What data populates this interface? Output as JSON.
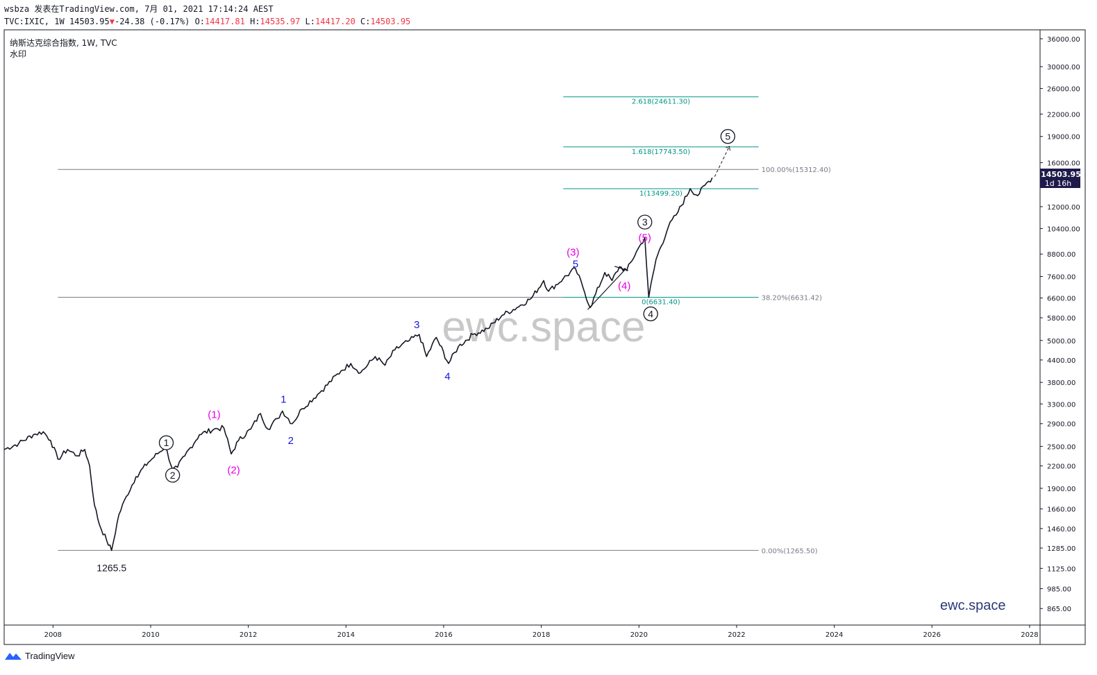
{
  "header": {
    "user": "wsbza",
    "published_on": "发表在TradingView.com,",
    "datetime": "7月 01, 2021 17:14:24 AEST",
    "symbol": "TVC:IXIC, 1W",
    "last": "14503.95",
    "change": "-24.38 (-0.17%)",
    "open_label": "O:",
    "open": "14417.81",
    "high_label": "H:",
    "high": "14535.97",
    "low_label": "L:",
    "low": "14417.20",
    "close_label": "C:",
    "close": "14503.95"
  },
  "legend": {
    "title": "纳斯达克综合指数, 1W, TVC",
    "watermark_label": "水印"
  },
  "watermark": "ewc.space",
  "brand_bottom": "ewc.space",
  "footer": {
    "brand": "TradingView"
  },
  "price_badge": {
    "price": "14503.95",
    "countdown": "1d 16h"
  },
  "colors": {
    "candles": "#131722",
    "fib_teal": "#009688",
    "fib_gray": "#787b86",
    "wave_magenta": "#e600e6",
    "wave_blue": "#1515e0",
    "badge_bg": "#1e1a4a"
  },
  "chart_data": {
    "type": "line",
    "scale": "log",
    "ylim": [
      780,
      38000
    ],
    "xlim": [
      2007.0,
      2028.2
    ],
    "x_ticks": [
      "2008",
      "2010",
      "2012",
      "2014",
      "2016",
      "2018",
      "2020",
      "2022",
      "2024",
      "2026",
      "2028"
    ],
    "y_ticks": [
      "36000.00",
      "30000.00",
      "26000.00",
      "22000.00",
      "19000.00",
      "16000.00",
      "12000.00",
      "10400.00",
      "8800.00",
      "7600.00",
      "6600.00",
      "5800.00",
      "5000.00",
      "4400.00",
      "3800.00",
      "3300.00",
      "2900.00",
      "2500.00",
      "2200.00",
      "1900.00",
      "1660.00",
      "1460.00",
      "1285.00",
      "1125.00",
      "985.00",
      "865.00"
    ],
    "series": [
      {
        "values": [
          [
            2007.0,
            2450
          ],
          [
            2007.3,
            2550
          ],
          [
            2007.6,
            2700
          ],
          [
            2007.8,
            2750
          ],
          [
            2007.95,
            2600
          ],
          [
            2008.1,
            2300
          ],
          [
            2008.3,
            2450
          ],
          [
            2008.5,
            2350
          ],
          [
            2008.65,
            2450
          ],
          [
            2008.75,
            2200
          ],
          [
            2008.85,
            1700
          ],
          [
            2008.95,
            1500
          ],
          [
            2009.1,
            1350
          ],
          [
            2009.2,
            1265.5
          ],
          [
            2009.35,
            1600
          ],
          [
            2009.5,
            1800
          ],
          [
            2009.7,
            2050
          ],
          [
            2009.95,
            2250
          ],
          [
            2010.3,
            2500
          ],
          [
            2010.45,
            2150
          ],
          [
            2010.55,
            2180
          ],
          [
            2010.7,
            2350
          ],
          [
            2011.0,
            2700
          ],
          [
            2011.3,
            2800
          ],
          [
            2011.5,
            2820
          ],
          [
            2011.65,
            2380
          ],
          [
            2011.8,
            2600
          ],
          [
            2012.05,
            2800
          ],
          [
            2012.25,
            3100
          ],
          [
            2012.4,
            2800
          ],
          [
            2012.6,
            3000
          ],
          [
            2012.7,
            3150
          ],
          [
            2012.9,
            2900
          ],
          [
            2013.1,
            3200
          ],
          [
            2013.5,
            3600
          ],
          [
            2013.9,
            4100
          ],
          [
            2014.1,
            4300
          ],
          [
            2014.3,
            4050
          ],
          [
            2014.6,
            4500
          ],
          [
            2014.8,
            4250
          ],
          [
            2015.0,
            4700
          ],
          [
            2015.3,
            5000
          ],
          [
            2015.5,
            5200
          ],
          [
            2015.65,
            4500
          ],
          [
            2015.85,
            5100
          ],
          [
            2016.1,
            4300
          ],
          [
            2016.3,
            4800
          ],
          [
            2016.6,
            5200
          ],
          [
            2016.9,
            5400
          ],
          [
            2017.2,
            5900
          ],
          [
            2017.5,
            6200
          ],
          [
            2017.8,
            6600
          ],
          [
            2018.05,
            7400
          ],
          [
            2018.15,
            6900
          ],
          [
            2018.45,
            7500
          ],
          [
            2018.7,
            8000
          ],
          [
            2018.85,
            7100
          ],
          [
            2019.0,
            6200
          ],
          [
            2019.3,
            7800
          ],
          [
            2019.45,
            7400
          ],
          [
            2019.6,
            8100
          ],
          [
            2019.75,
            7900
          ],
          [
            2019.95,
            8950
          ],
          [
            2020.12,
            9800
          ],
          [
            2020.2,
            6630
          ],
          [
            2020.35,
            8500
          ],
          [
            2020.6,
            10500
          ],
          [
            2020.8,
            11600
          ],
          [
            2021.05,
            13500
          ],
          [
            2021.2,
            12900
          ],
          [
            2021.35,
            13800
          ],
          [
            2021.5,
            14503.95
          ]
        ]
      }
    ],
    "projection": {
      "from": [
        2021.55,
        14600
      ],
      "to": [
        2021.85,
        17800
      ]
    },
    "fib_retracement": [
      {
        "label": "100.00%(15312.40)",
        "price": 15312.4
      },
      {
        "label": "38.20%(6631.42)",
        "price": 6631.42
      },
      {
        "label": "0.00%(1265.50)",
        "price": 1265.5
      }
    ],
    "fib_extension": [
      {
        "label": "2.618(24611.30)",
        "price": 24611.3
      },
      {
        "label": "1.618(17743.50)",
        "price": 17743.5
      },
      {
        "label": "1(13499.20)",
        "price": 13499.2
      },
      {
        "label": "0(6631.40)",
        "price": 6631.4
      }
    ],
    "annotations": {
      "low_label": "1265.5",
      "circled": [
        {
          "text": "1",
          "x": 2010.32,
          "price": 2560
        },
        {
          "text": "2",
          "x": 2010.45,
          "price": 2070
        },
        {
          "text": "3",
          "x": 2020.12,
          "price": 10850
        },
        {
          "text": "4",
          "x": 2020.24,
          "price": 5950
        },
        {
          "text": "5",
          "x": 2021.82,
          "price": 19000
        }
      ],
      "magenta": [
        {
          "text": "(1)",
          "x": 2011.3,
          "price": 3080
        },
        {
          "text": "(2)",
          "x": 2011.7,
          "price": 2140
        },
        {
          "text": "(3)",
          "x": 2018.65,
          "price": 8900
        },
        {
          "text": "(4)",
          "x": 2019.7,
          "price": 7150
        },
        {
          "text": "(5)",
          "x": 2020.12,
          "price": 9800
        }
      ],
      "blue": [
        {
          "text": "1",
          "x": 2012.72,
          "price": 3400
        },
        {
          "text": "2",
          "x": 2012.87,
          "price": 2600
        },
        {
          "text": "3",
          "x": 2015.45,
          "price": 5550
        },
        {
          "text": "4",
          "x": 2016.08,
          "price": 3950
        },
        {
          "text": "5",
          "x": 2018.7,
          "price": 8250
        }
      ]
    }
  }
}
